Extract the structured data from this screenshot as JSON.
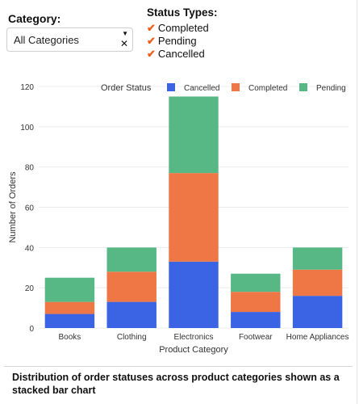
{
  "filters": {
    "category_label": "Category:",
    "category_value": "All Categories",
    "status_title": "Status Types:",
    "status_items": [
      {
        "label": "Completed",
        "checked": true
      },
      {
        "label": "Pending",
        "checked": true
      },
      {
        "label": "Cancelled",
        "checked": true
      }
    ],
    "check_mark": "✔",
    "caret": "▼",
    "clear": "✕"
  },
  "chart_data": {
    "type": "bar",
    "stacked": true,
    "categories": [
      "Books",
      "Clothing",
      "Electronics",
      "Footwear",
      "Home Appliances"
    ],
    "series": [
      {
        "name": "Cancelled",
        "color": "#3b64e4",
        "values": [
          7,
          13,
          33,
          8,
          16
        ]
      },
      {
        "name": "Completed",
        "color": "#ee7745",
        "values": [
          6,
          15,
          44,
          10,
          13
        ]
      },
      {
        "name": "Pending",
        "color": "#57b886",
        "values": [
          12,
          12,
          38,
          9,
          11
        ]
      }
    ],
    "legend_title": "Order Status",
    "legend_position": "top-right",
    "xlabel": "Product Category",
    "ylabel": "Number of Orders",
    "ylim": [
      0,
      120
    ],
    "yticks": [
      0,
      20,
      40,
      60,
      80,
      100,
      120
    ],
    "grid": true
  },
  "caption": "Distribution of order statuses across product categories shown as a stacked bar chart"
}
